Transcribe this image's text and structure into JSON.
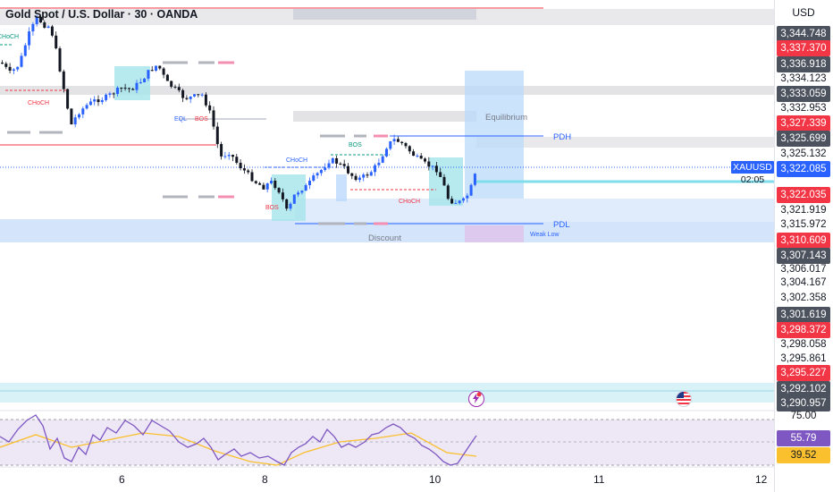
{
  "header": {
    "title": "Gold Spot / U.S. Dollar · 30 · OANDA",
    "currency": "USD"
  },
  "symbol": {
    "ticker": "XAUUSD",
    "countdown": "02:05"
  },
  "price_axis": [
    {
      "label": "3,344.748",
      "style": "grey"
    },
    {
      "label": "3,337.370",
      "style": "red"
    },
    {
      "label": "3,336.918",
      "style": "grey"
    },
    {
      "label": "3,334.123",
      "style": "plain"
    },
    {
      "label": "3,333.059",
      "style": "grey"
    },
    {
      "label": "3,332.953",
      "style": "plain"
    },
    {
      "label": "3,327.339",
      "style": "red"
    },
    {
      "label": "3,325.699",
      "style": "grey"
    },
    {
      "label": "3,325.132",
      "style": "plain"
    },
    {
      "label": "3,322.085",
      "style": "blue"
    },
    {
      "label": "3,322.035",
      "style": "red"
    },
    {
      "label": "3,321.919",
      "style": "plain"
    },
    {
      "label": "3,315.972",
      "style": "plain"
    },
    {
      "label": "3,310.609",
      "style": "red"
    },
    {
      "label": "3,307.143",
      "style": "grey"
    },
    {
      "label": "3,306.017",
      "style": "plain"
    },
    {
      "label": "3,304.167",
      "style": "plain"
    },
    {
      "label": "3,302.358",
      "style": "plain"
    },
    {
      "label": "3,301.619",
      "style": "grey"
    },
    {
      "label": "3,298.372",
      "style": "red"
    },
    {
      "label": "3,298.058",
      "style": "plain"
    },
    {
      "label": "3,295.861",
      "style": "plain"
    },
    {
      "label": "3,295.227",
      "style": "red"
    },
    {
      "label": "3,292.102",
      "style": "grey"
    },
    {
      "label": "3,290.957",
      "style": "grey"
    }
  ],
  "rsi_axis": [
    {
      "label": "75.00",
      "style": "plain"
    },
    {
      "label": "55.79",
      "style": "purple"
    },
    {
      "label": "39.52",
      "style": "yellow"
    }
  ],
  "time_axis": [
    "6",
    "8",
    "10",
    "11",
    "12"
  ],
  "annotations": {
    "choch": "CHoCH",
    "bos": "BOS",
    "eql": "EQL",
    "equilibrium": "Equilibrium",
    "pdh": "PDH",
    "pdl": "PDL",
    "discount": "Discount",
    "weak_low": "Weak Low"
  },
  "colors": {
    "up": "#2962ff",
    "down": "#131722",
    "red": "#f23645",
    "grey": "#787b86",
    "blue_zone": "#bbd9fb",
    "rsi": "#7e57c2",
    "rsi_ma": "#fbc02d"
  },
  "events": [
    "lightning-icon",
    "us-flag-icon"
  ]
}
